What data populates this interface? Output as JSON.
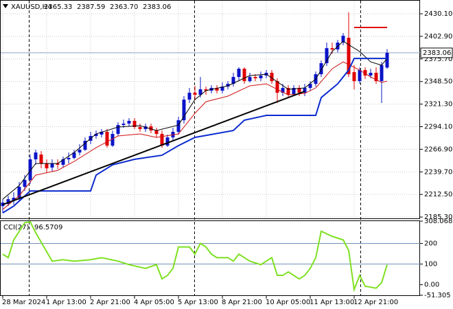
{
  "chart_data": [
    {
      "type": "candlestick",
      "title": "XAUUSD,H4",
      "quote": [
        "2365.33",
        "2387.59",
        "2363.70",
        "2383.06"
      ],
      "categories": [
        "28 Mar 2024",
        null,
        null,
        null,
        null,
        null,
        null,
        null,
        "1 Apr 13:00",
        null,
        null,
        null,
        null,
        null,
        null,
        null,
        "2 Apr 21:00",
        null,
        null,
        null,
        null,
        null,
        null,
        null,
        "4 Apr 05:00",
        null,
        null,
        null,
        null,
        null,
        null,
        null,
        "5 Apr 13:00",
        null,
        null,
        null,
        null,
        null,
        null,
        null,
        "8 Apr 21:00",
        null,
        null,
        null,
        null,
        null,
        null,
        null,
        "10 Apr 05:00",
        null,
        null,
        null,
        null,
        null,
        null,
        null,
        "11 Apr 13:00",
        null,
        null,
        null,
        null,
        null,
        null,
        null,
        "12 Apr 21:00",
        null,
        null,
        null,
        null,
        null,
        null
      ],
      "open": [
        2198.5,
        2201.0,
        2205.2,
        2208.5,
        2221.7,
        2230.0,
        2254.8,
        2260.6,
        2249.8,
        2244.9,
        2249.8,
        2248.2,
        2254.8,
        2256.5,
        2263.0,
        2266.3,
        2277.1,
        2282.9,
        2284.6,
        2287.9,
        2271.3,
        2285.4,
        2296.1,
        2297.8,
        2301.1,
        2293.7,
        2291.2,
        2294.5,
        2289.5,
        2285.4,
        2271.3,
        2281.2,
        2287.9,
        2301.9,
        2326.7,
        2335.0,
        2332.5,
        2339.1,
        2337.5,
        2340.8,
        2337.5,
        2342.4,
        2345.7,
        2354.0,
        2363.9,
        2349.0,
        2354.0,
        2352.4,
        2355.7,
        2359.0,
        2349.0,
        2335.0,
        2340.8,
        2332.5,
        2340.8,
        2335.0,
        2340.8,
        2345.7,
        2357.3,
        2370.6,
        2388.7,
        2387.1,
        2395.4,
        2401.2,
        2359.8,
        2349.0,
        2362.3,
        2355.7,
        2359.0,
        2349.0,
        2365.33
      ],
      "high": [
        2206.8,
        2210.9,
        2215.1,
        2227.5,
        2235.8,
        2260.6,
        2266.3,
        2264.7,
        2254.8,
        2254.8,
        2254.8,
        2258.1,
        2263.0,
        2266.3,
        2273.0,
        2281.2,
        2287.9,
        2289.5,
        2291.2,
        2291.2,
        2289.5,
        2299.4,
        2302.7,
        2304.4,
        2304.4,
        2297.8,
        2297.8,
        2297.8,
        2292.8,
        2289.5,
        2284.6,
        2292.8,
        2306.0,
        2330.9,
        2340.8,
        2343.3,
        2354.0,
        2342.4,
        2344.1,
        2344.1,
        2347.4,
        2349.0,
        2359.0,
        2365.6,
        2365.6,
        2359.0,
        2357.3,
        2360.6,
        2362.3,
        2362.3,
        2352.4,
        2345.7,
        2344.1,
        2344.1,
        2344.1,
        2345.7,
        2349.0,
        2360.6,
        2373.9,
        2395.4,
        2395.4,
        2398.7,
        2406.9,
        2431.8,
        2368.1,
        2365.6,
        2365.6,
        2363.9,
        2365.6,
        2372.2,
        2387.59
      ],
      "low": [
        2190.3,
        2198.5,
        2200.2,
        2205.2,
        2216.7,
        2225.0,
        2248.2,
        2244.0,
        2238.2,
        2239.9,
        2243.2,
        2244.9,
        2249.8,
        2254.8,
        2259.7,
        2264.7,
        2273.0,
        2279.6,
        2281.2,
        2268.8,
        2269.7,
        2282.9,
        2292.8,
        2294.5,
        2291.2,
        2287.9,
        2287.9,
        2286.2,
        2281.2,
        2268.8,
        2269.7,
        2277.9,
        2284.6,
        2297.8,
        2322.6,
        2326.7,
        2329.2,
        2332.5,
        2334.2,
        2334.2,
        2334.2,
        2339.1,
        2342.4,
        2349.0,
        2345.7,
        2347.4,
        2349.0,
        2349.0,
        2352.4,
        2345.7,
        2322.6,
        2330.9,
        2329.2,
        2330.9,
        2330.9,
        2330.9,
        2337.5,
        2342.4,
        2354.0,
        2367.2,
        2382.1,
        2383.8,
        2392.1,
        2354.0,
        2339.1,
        2345.7,
        2351.5,
        2352.4,
        2345.7,
        2322.6,
        2363.7
      ],
      "close": [
        2202.7,
        2206.8,
        2208.5,
        2221.7,
        2230.0,
        2254.8,
        2263.0,
        2249.8,
        2244.0,
        2249.8,
        2248.2,
        2254.8,
        2256.5,
        2263.0,
        2266.3,
        2277.1,
        2282.9,
        2285.4,
        2287.9,
        2271.3,
        2285.4,
        2296.1,
        2297.8,
        2301.1,
        2293.7,
        2291.2,
        2294.5,
        2289.5,
        2285.4,
        2271.3,
        2281.2,
        2287.9,
        2301.9,
        2326.7,
        2335.0,
        2332.5,
        2339.1,
        2337.5,
        2340.8,
        2337.5,
        2342.4,
        2345.7,
        2354.0,
        2363.9,
        2349.0,
        2354.0,
        2352.4,
        2355.7,
        2359.0,
        2349.0,
        2335.0,
        2340.8,
        2332.5,
        2340.8,
        2335.0,
        2340.8,
        2345.7,
        2357.3,
        2370.6,
        2388.7,
        2387.1,
        2395.4,
        2403.6,
        2357.3,
        2349.0,
        2362.3,
        2355.7,
        2359.0,
        2349.0,
        2368.1,
        2383.06
      ],
      "up_color": "#0a14c8",
      "down_color": "#e00000",
      "ylim": [
        2183.7,
        2444.2
      ],
      "yticks": [
        {
          "value": 2185.3,
          "label": "2185.30"
        },
        {
          "value": 2212.5,
          "label": "2212.50"
        },
        {
          "value": 2239.7,
          "label": "2239.70"
        },
        {
          "value": 2266.9,
          "label": "2266.90"
        },
        {
          "value": 2294.1,
          "label": "2294.10"
        },
        {
          "value": 2321.3,
          "label": "2321.30"
        },
        {
          "value": 2348.5,
          "label": "2348.50"
        },
        {
          "value": 2375.7,
          "label": "2375.70"
        },
        {
          "value": 2402.9,
          "label": "2402.90"
        },
        {
          "value": 2430.1,
          "label": "2430.10"
        }
      ],
      "grid": true,
      "last_price": 2383.06,
      "overlays": [
        {
          "color": "#000000",
          "x": [
            0,
            3,
            6,
            10,
            13,
            17,
            21,
            25,
            28,
            32,
            35,
            37,
            41,
            45,
            48,
            52,
            55,
            57,
            60,
            62,
            65,
            67,
            69,
            70
          ],
          "values": [
            2206.8,
            2223.3,
            2249.8,
            2249.8,
            2263.0,
            2285.4,
            2293.7,
            2295.3,
            2289.5,
            2296.1,
            2326.7,
            2337.5,
            2343.3,
            2355.7,
            2357.3,
            2339.1,
            2340.8,
            2351.5,
            2384.6,
            2397.0,
            2384.6,
            2372.2,
            2368.1,
            2376.3
          ],
          "width": 1
        },
        {
          "color": "#d01010",
          "x": [
            0,
            3,
            6,
            10,
            13,
            17,
            21,
            25,
            28,
            32,
            35,
            37,
            41,
            45,
            48,
            52,
            55,
            57,
            60,
            62,
            65,
            67,
            69,
            70
          ],
          "values": [
            2194.4,
            2210.9,
            2235.8,
            2241.5,
            2252.3,
            2268.8,
            2282.9,
            2285.4,
            2281.2,
            2285.4,
            2310.2,
            2324.2,
            2330.9,
            2343.3,
            2345.7,
            2332.5,
            2334.2,
            2340.8,
            2363.9,
            2372.2,
            2362.3,
            2354.0,
            2347.4,
            2349.0
          ],
          "width": 1
        },
        {
          "color": "#0a2ad0",
          "x": [
            0,
            2,
            5,
            16,
            17,
            20,
            24,
            29,
            32,
            35,
            42,
            44,
            48,
            57,
            58,
            61,
            63,
            64,
            70
          ],
          "values": [
            2190.3,
            2198.5,
            2216.7,
            2216.7,
            2235.8,
            2248.2,
            2254.8,
            2259.7,
            2271.3,
            2281.2,
            2289.5,
            2301.9,
            2307.7,
            2307.7,
            2329.2,
            2345.7,
            2362.3,
            2376.3,
            2376.3
          ],
          "width": 2
        },
        {
          "color": "#000000",
          "x": [
            0,
            55
          ],
          "values": [
            2200.2,
            2336.6
          ],
          "width": 2
        },
        {
          "color": "#e00000",
          "x": [
            64,
            70
          ],
          "values": [
            2413.6,
            2413.6
          ],
          "width": 2
        }
      ]
    },
    {
      "type": "line",
      "title": "CCI(27)",
      "color": "#7ee020",
      "x": [
        0,
        1,
        2,
        4,
        5,
        6,
        9,
        11,
        13,
        16,
        18,
        21,
        23,
        26,
        28,
        29,
        30,
        31,
        32,
        34,
        35,
        36,
        37,
        38,
        39,
        41,
        42,
        43,
        44,
        45,
        47,
        49,
        50,
        51,
        52,
        54,
        55,
        56,
        57,
        58,
        60,
        62,
        63,
        64,
        65,
        66,
        68,
        69,
        70
      ],
      "values": [
        148,
        131,
        217,
        300,
        305,
        252,
        114,
        121,
        114,
        121,
        131,
        114,
        97,
        79,
        97,
        28,
        45,
        79,
        183,
        183,
        148,
        200,
        183,
        148,
        131,
        131,
        114,
        148,
        131,
        114,
        97,
        131,
        45,
        45,
        62,
        28,
        45,
        79,
        131,
        259,
        234,
        217,
        166,
        -24,
        45,
        -7,
        -17,
        10,
        96.5709
      ],
      "ylim": [
        -51.305,
        308.0683
      ],
      "yticks": [
        -51.305,
        {
          "value": 0,
          "label": "0.00"
        },
        100,
        200,
        308.0683
      ],
      "levels": [
        100,
        200
      ],
      "level_color": "#7090b8"
    }
  ]
}
